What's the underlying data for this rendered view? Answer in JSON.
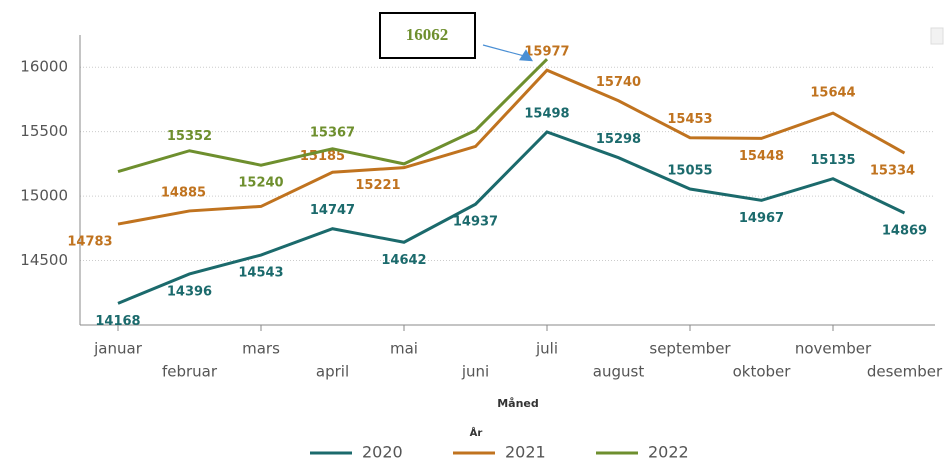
{
  "chart_data": {
    "type": "line",
    "x_label": "Måned",
    "legend_title": "År",
    "categories": [
      "januar",
      "februar",
      "mars",
      "april",
      "mai",
      "juni",
      "juli",
      "august",
      "september",
      "oktober",
      "november",
      "desember"
    ],
    "series": [
      {
        "name": "2020",
        "color": "#1b6a6c",
        "values": [
          14168,
          14396,
          14543,
          14747,
          14642,
          14937,
          15498,
          15298,
          15055,
          14967,
          15135,
          14869
        ],
        "value_labels": [
          "14168",
          "14396",
          "14543",
          "14747",
          "14642",
          "14937",
          "15498",
          "15298",
          "15055",
          "14967",
          "15135",
          "14869"
        ]
      },
      {
        "name": "2021",
        "color": "#c0731f",
        "values": [
          14783,
          14885,
          14920,
          15185,
          15221,
          15385,
          15977,
          15740,
          15453,
          15448,
          15644,
          15334
        ],
        "value_labels": [
          "14783",
          "14885",
          null,
          "15185",
          "15221",
          null,
          "15977",
          "15740",
          "15453",
          "15448",
          "15644",
          "15334"
        ]
      },
      {
        "name": "2022",
        "color": "#6e8f2e",
        "values": [
          15190,
          15352,
          15240,
          15367,
          15250,
          15510,
          16062,
          null,
          null,
          null,
          null,
          null
        ],
        "value_labels": [
          null,
          "15352",
          "15240",
          "15367",
          null,
          null,
          null,
          null,
          null,
          null,
          null,
          null
        ]
      }
    ],
    "annotations": [
      {
        "text": "16062",
        "series": 2,
        "index": 6
      }
    ],
    "ylim": [
      14000,
      16250
    ],
    "yticks": [
      14500,
      15000,
      15500,
      16000
    ],
    "grid": true,
    "legend": "bottom"
  }
}
